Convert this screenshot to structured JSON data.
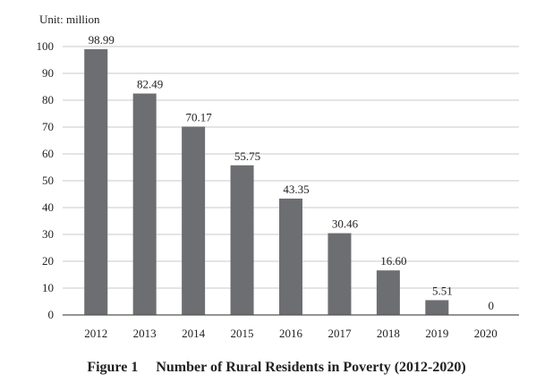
{
  "chart_data": {
    "type": "bar",
    "unit_label": "Unit: million",
    "categories": [
      "2012",
      "2013",
      "2014",
      "2015",
      "2016",
      "2017",
      "2018",
      "2019",
      "2020"
    ],
    "values": [
      98.99,
      82.49,
      70.17,
      55.75,
      43.35,
      30.46,
      16.6,
      5.51,
      0
    ],
    "data_labels": [
      "98.99",
      "82.49",
      "70.17",
      "55.75",
      "43.35",
      "30.46",
      "16.60",
      "5.51",
      "0"
    ],
    "y_ticks": [
      0,
      10,
      20,
      30,
      40,
      50,
      60,
      70,
      80,
      90,
      100
    ],
    "ylim": [
      0,
      100
    ],
    "grid": true,
    "bar_color": "#6d6e71",
    "grid_color": "#c8c8c8",
    "axis_color": "#555555"
  },
  "caption": {
    "figure_label": "Figure 1",
    "title": "Number of Rural Residents in Poverty (2012-2020)"
  }
}
